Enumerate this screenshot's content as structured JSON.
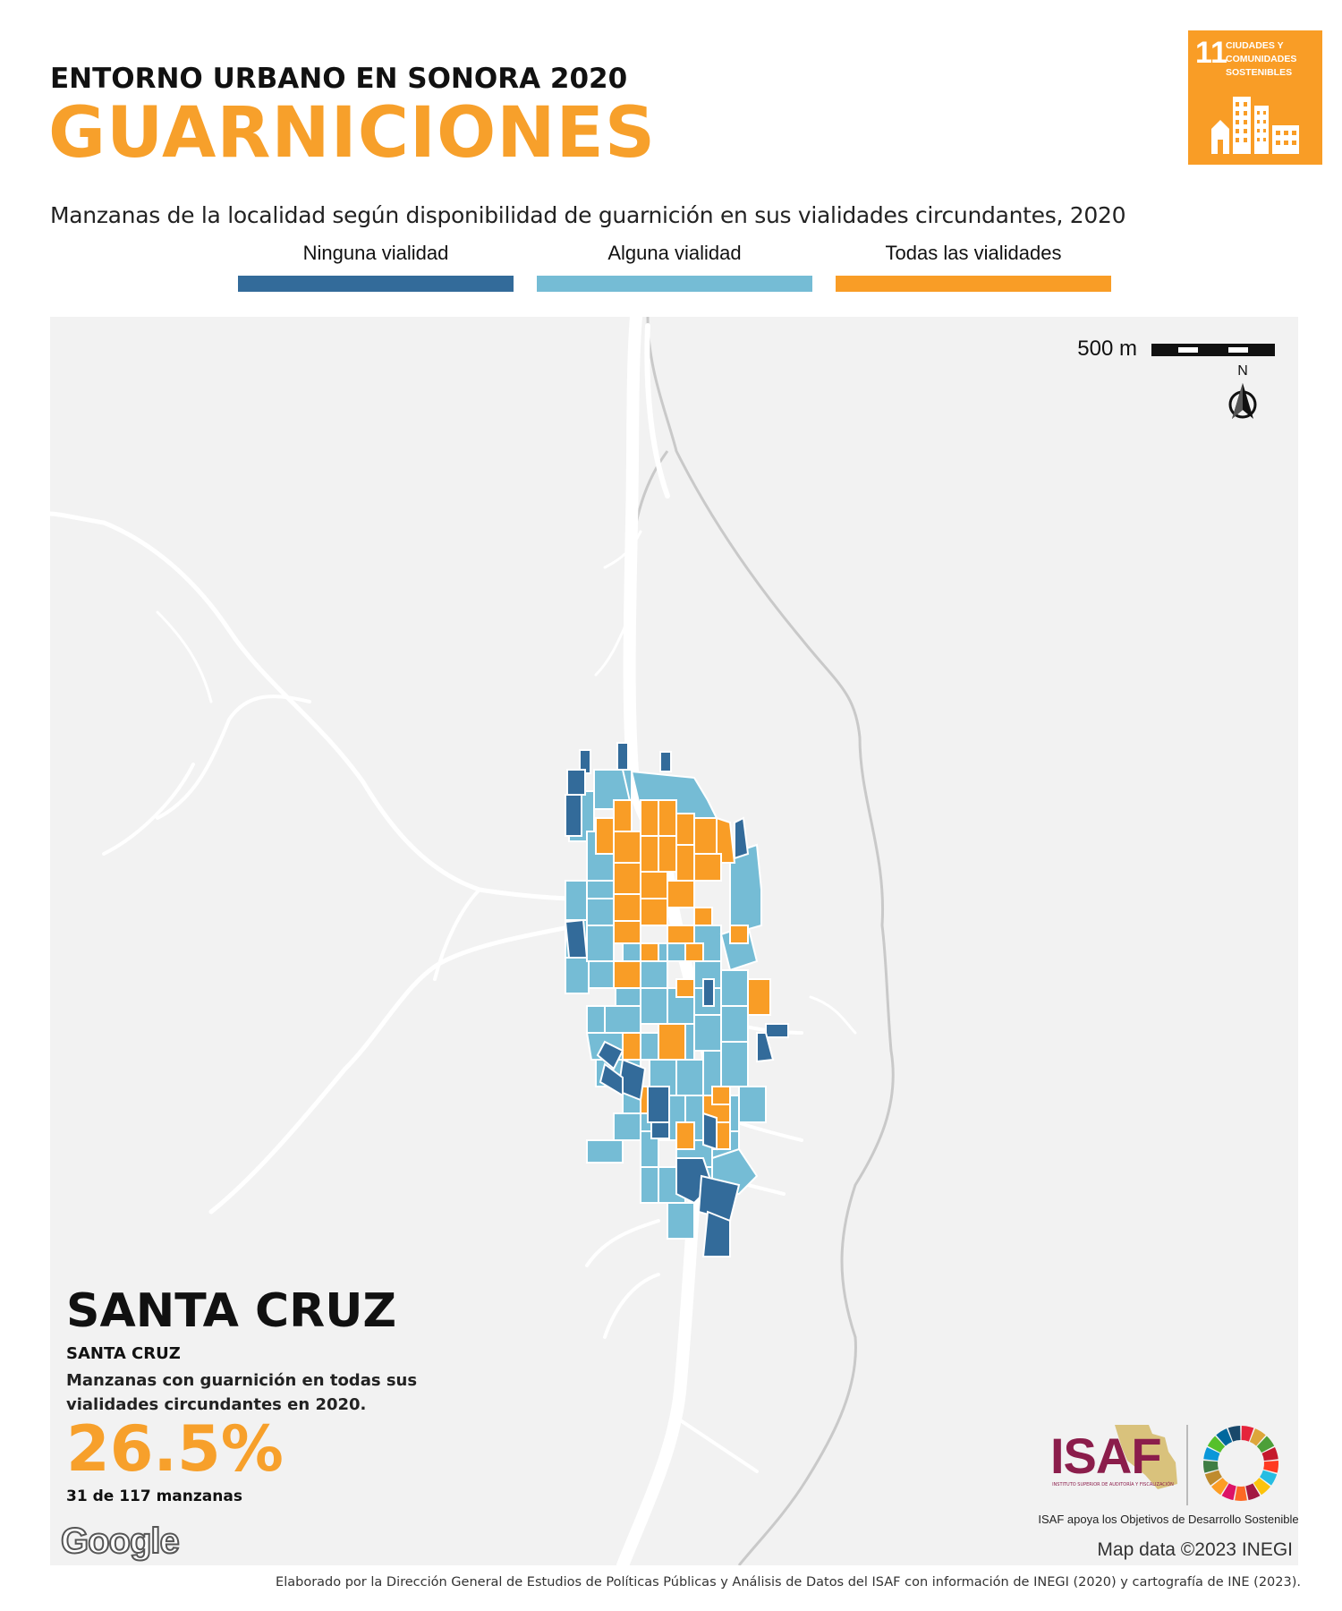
{
  "header": {
    "kicker": "ENTORNO URBANO EN SONORA 2020",
    "title": "GUARNICIONES",
    "subtitle": "Manzanas de la localidad según disponibilidad de guarnición en sus vialidades circundantes, 2020"
  },
  "sdg_badge": {
    "number": "11",
    "text": "CIUDADES Y COMUNIDADES SOSTENIBLES",
    "icon": "city-buildings-icon",
    "color": "#f99d26"
  },
  "legend": [
    {
      "label": "Ninguna vialidad",
      "color": "#336b9a"
    },
    {
      "label": "Alguna vialidad",
      "color": "#75bcd5"
    },
    {
      "label": "Todas las vialidades",
      "color": "#f99d26"
    }
  ],
  "map": {
    "scale_label": "500 m",
    "north_label": "N",
    "background": "#f2f2f2",
    "road_color": "#ffffff",
    "credit": "Map data ©2023 INEGI",
    "google_logo": "Google"
  },
  "place": {
    "municipality": "SANTA CRUZ",
    "locality": "SANTA CRUZ",
    "description": "Manzanas con guarnición en todas sus vialidades circundantes en 2020.",
    "percent": "26.5%",
    "count": "31 de 117 manzanas"
  },
  "isaf": {
    "logo_text": "ISAF",
    "logo_subtext": "INSTITUTO SUPERIOR DE AUDITORÍA Y FISCALIZACIÓN",
    "caption": "ISAF apoya los Objetivos de Desarrollo Sostenible",
    "sdg_wheel_colors": [
      "#e5243b",
      "#dda63a",
      "#4c9f38",
      "#c5192d",
      "#ff3a21",
      "#26bde2",
      "#fcc30b",
      "#a21942",
      "#fd6925",
      "#dd1367",
      "#fd9d24",
      "#bf8b2e",
      "#3f7e44",
      "#0a97d9",
      "#56c02b",
      "#00689d",
      "#19486a"
    ]
  },
  "footer": "Elaborado por la Dirección General de Estudios de Políticas Públicas y Análisis de Datos del ISAF con información de INEGI (2020) y cartografía de INE (2023)."
}
